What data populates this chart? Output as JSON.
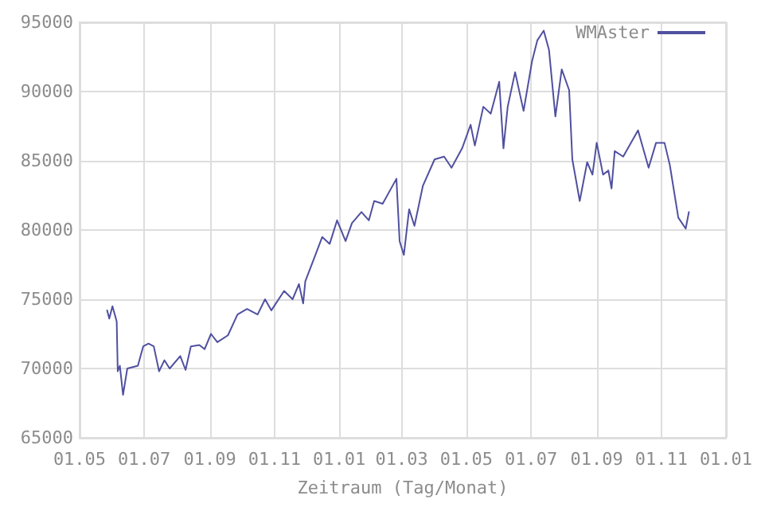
{
  "chart_data": {
    "type": "line",
    "xlabel": "Zeitraum (Tag/Monat)",
    "x": [
      "2006-05-27",
      "2006-05-29",
      "2006-06-01",
      "2006-06-05",
      "2006-06-06",
      "2006-06-08",
      "2006-06-11",
      "2006-06-15",
      "2006-06-25",
      "2006-06-30",
      "2006-07-05",
      "2006-07-10",
      "2006-07-15",
      "2006-07-20",
      "2006-07-25",
      "2006-08-04",
      "2006-08-09",
      "2006-08-14",
      "2006-08-22",
      "2006-08-27",
      "2006-09-02",
      "2006-09-08",
      "2006-09-18",
      "2006-09-27",
      "2006-10-06",
      "2006-10-16",
      "2006-10-23",
      "2006-10-29",
      "2006-11-10",
      "2006-11-18",
      "2006-11-24",
      "2006-11-28",
      "2006-11-30",
      "2006-12-08",
      "2006-12-16",
      "2006-12-23",
      "2006-12-30",
      "2007-01-07",
      "2007-01-13",
      "2007-01-22",
      "2007-01-29",
      "2007-02-03",
      "2007-02-11",
      "2007-02-24",
      "2007-02-27",
      "2007-03-03",
      "2007-03-08",
      "2007-03-13",
      "2007-03-21",
      "2007-04-01",
      "2007-04-10",
      "2007-04-17",
      "2007-04-27",
      "2007-05-05",
      "2007-05-09",
      "2007-05-17",
      "2007-05-24",
      "2007-06-01",
      "2007-06-05",
      "2007-06-09",
      "2007-06-16",
      "2007-06-24",
      "2007-07-02",
      "2007-07-07",
      "2007-07-13",
      "2007-07-18",
      "2007-07-24",
      "2007-07-30",
      "2007-08-06",
      "2007-08-09",
      "2007-08-16",
      "2007-08-23",
      "2007-08-28",
      "2007-09-01",
      "2007-09-07",
      "2007-09-12",
      "2007-09-15",
      "2007-09-18",
      "2007-09-26",
      "2007-10-10",
      "2007-10-20",
      "2007-10-27",
      "2007-11-04",
      "2007-11-09",
      "2007-11-17",
      "2007-11-24",
      "2007-11-27"
    ],
    "series": [
      {
        "name": "WMAster",
        "color": "#5050a0",
        "values": [
          74200,
          73600,
          74500,
          73400,
          69800,
          70200,
          68100,
          70000,
          70200,
          71600,
          71800,
          71600,
          69800,
          70600,
          70000,
          70900,
          69900,
          71600,
          71700,
          71400,
          72500,
          71900,
          72400,
          73900,
          74300,
          73900,
          75000,
          74200,
          75600,
          75000,
          76100,
          74700,
          76300,
          77900,
          79500,
          79000,
          80700,
          79200,
          80500,
          81300,
          80700,
          82100,
          81900,
          83700,
          79200,
          78200,
          81500,
          80300,
          83200,
          85100,
          85300,
          84500,
          85900,
          87600,
          86100,
          88900,
          88400,
          90700,
          85900,
          88900,
          91400,
          88600,
          92200,
          93700,
          94400,
          93000,
          88200,
          91600,
          90100,
          85100,
          82100,
          84900,
          84000,
          86300,
          84000,
          84300,
          83000,
          85700,
          85300,
          87200,
          84500,
          86300,
          86300,
          84700,
          80900,
          80100,
          81300
        ]
      }
    ],
    "xlim": [
      "2006-05-01",
      "2008-01-01"
    ],
    "xticks": [
      {
        "value": "2006-05-01",
        "label": "01.05"
      },
      {
        "value": "2006-07-01",
        "label": "01.07"
      },
      {
        "value": "2006-09-01",
        "label": "01.09"
      },
      {
        "value": "2006-11-01",
        "label": "01.11"
      },
      {
        "value": "2007-01-01",
        "label": "01.01"
      },
      {
        "value": "2007-03-01",
        "label": "01.03"
      },
      {
        "value": "2007-05-01",
        "label": "01.05"
      },
      {
        "value": "2007-07-01",
        "label": "01.07"
      },
      {
        "value": "2007-09-01",
        "label": "01.09"
      },
      {
        "value": "2007-11-01",
        "label": "01.11"
      },
      {
        "value": "2008-01-01",
        "label": "01.01"
      }
    ],
    "ylim": [
      65000,
      95000
    ],
    "yticks": [
      65000,
      70000,
      75000,
      80000,
      85000,
      90000,
      95000
    ],
    "grid": true,
    "legend": "top right",
    "marker": "none",
    "line_style": "solid"
  }
}
